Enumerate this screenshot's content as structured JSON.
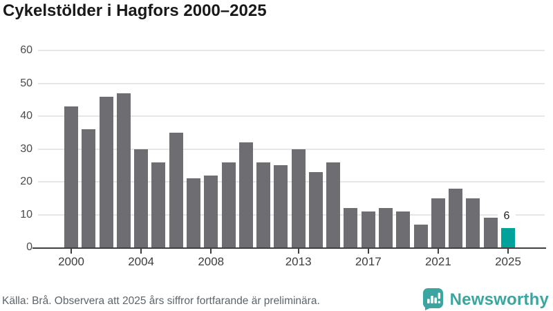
{
  "title": "Cykelstölder i Hagfors 2000–2025",
  "footer": {
    "source_text": "Källa: Brå. Observera att 2025 års siffror fortfarande är preliminära.",
    "brand": "Newsworthy"
  },
  "colors": {
    "bar": "#6e6d72",
    "highlight": "#00a29a",
    "brand_teal": "#3ba5a0",
    "grid": "#e6e6e6",
    "axis": "#3f3f3f"
  },
  "chart_data": {
    "type": "bar",
    "title": "Cykelstölder i Hagfors 2000–2025",
    "x": [
      2000,
      2001,
      2002,
      2003,
      2004,
      2005,
      2006,
      2007,
      2008,
      2009,
      2010,
      2011,
      2012,
      2013,
      2014,
      2015,
      2016,
      2017,
      2018,
      2019,
      2020,
      2021,
      2022,
      2023,
      2024,
      2025
    ],
    "values": [
      43,
      36,
      46,
      47,
      30,
      26,
      35,
      21,
      22,
      26,
      32,
      26,
      25,
      30,
      23,
      26,
      12,
      11,
      12,
      11,
      7,
      15,
      18,
      15,
      9,
      6
    ],
    "xlabel": "",
    "ylabel": "",
    "ylim": [
      0,
      60
    ],
    "yticks": [
      0,
      10,
      20,
      30,
      40,
      50,
      60
    ],
    "xticks": [
      2000,
      2004,
      2008,
      2013,
      2017,
      2021,
      2025
    ],
    "grid": true,
    "legend": false,
    "highlight_year": 2025,
    "highlight_value_label": "6"
  }
}
